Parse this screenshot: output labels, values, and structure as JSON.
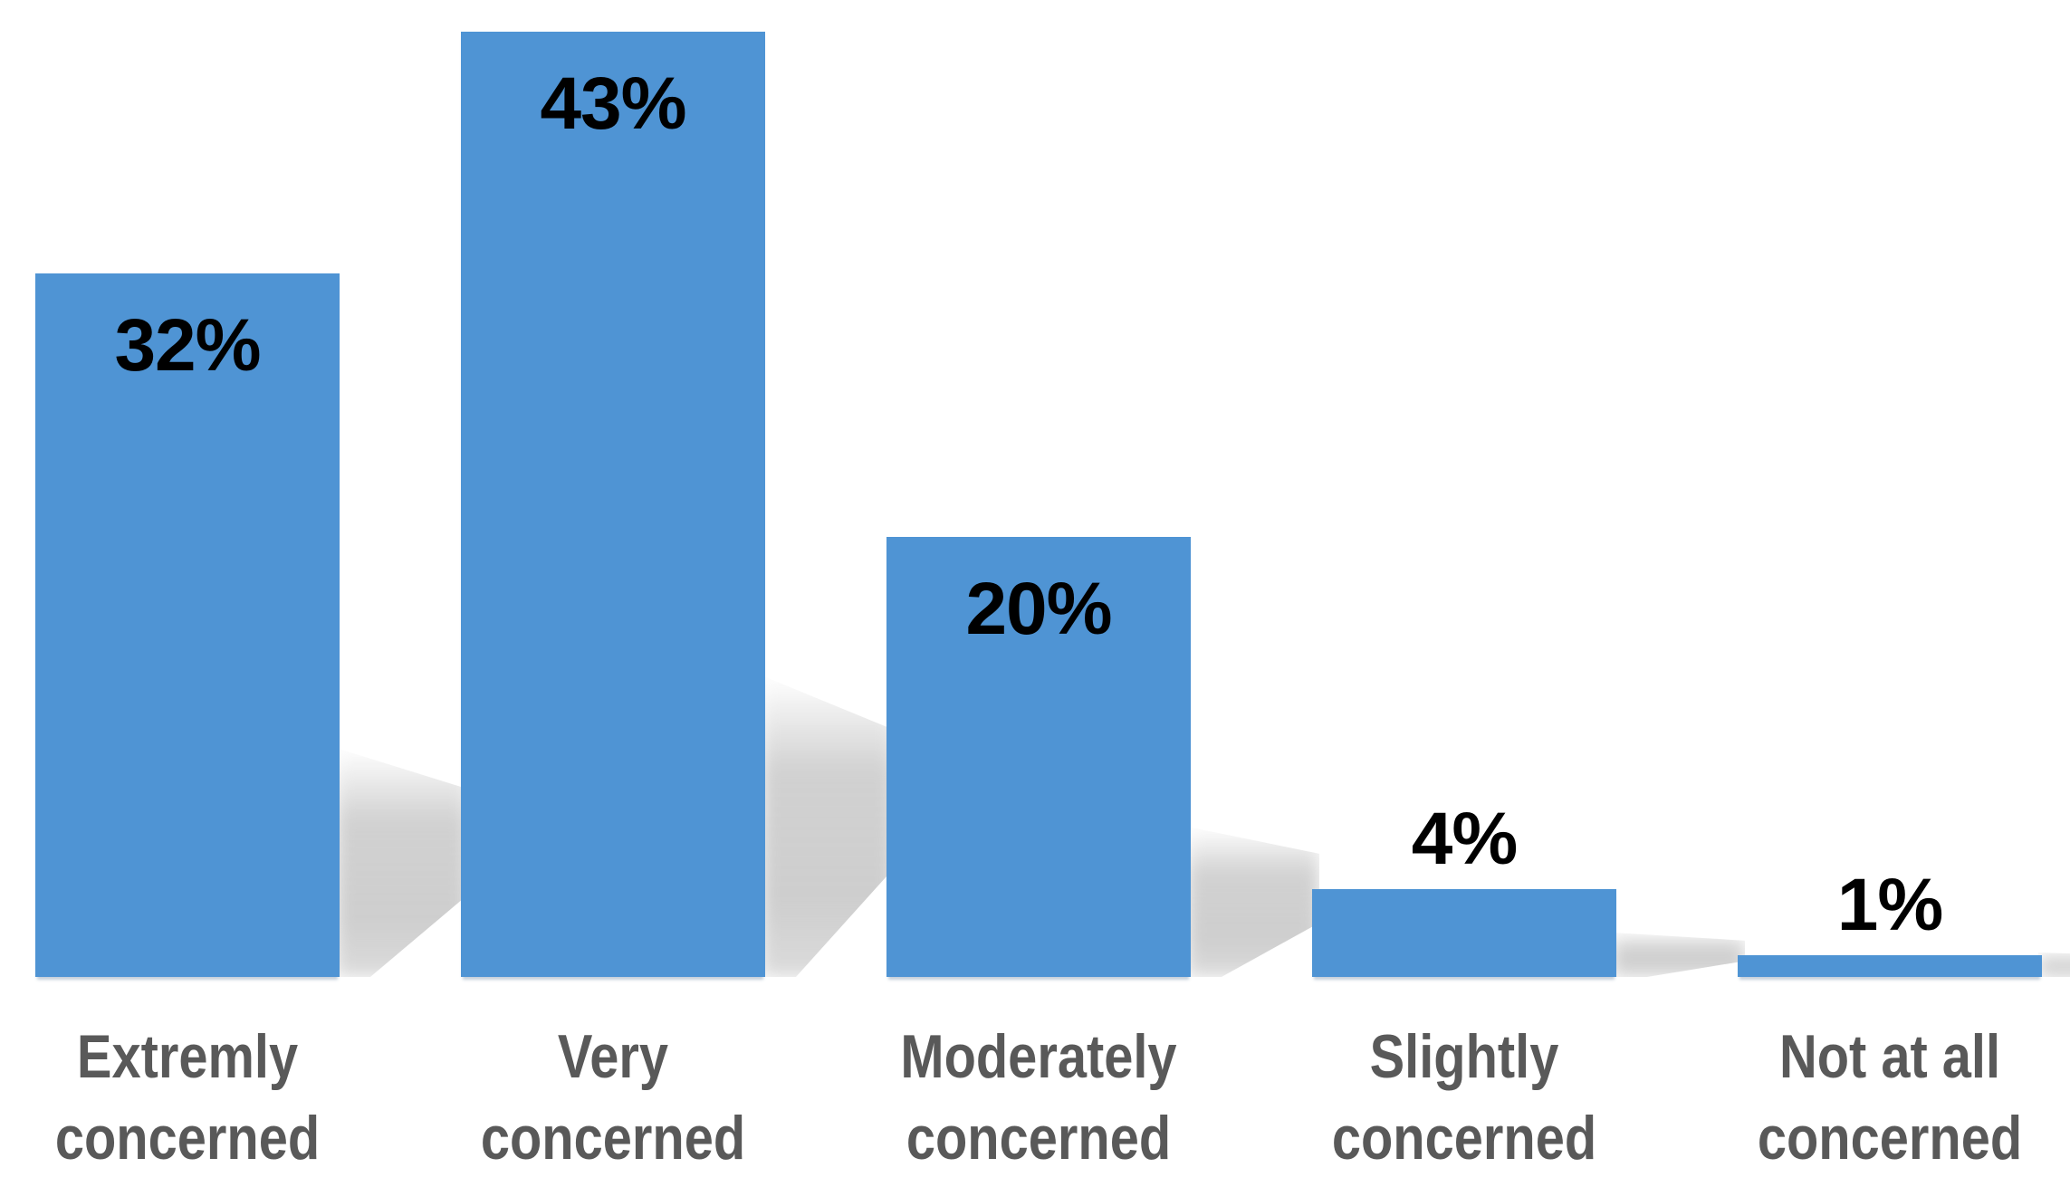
{
  "chart_data": {
    "type": "bar",
    "title": "",
    "xlabel": "",
    "ylabel": "",
    "categories": [
      "Extremly concerned",
      "Very concerned",
      "Moderately concerned",
      "Slightly concerned",
      "Not at all concerned"
    ],
    "values": [
      32,
      43,
      20,
      4,
      1
    ],
    "bars": [
      {
        "category_lines": [
          "Extremly",
          "concerned"
        ],
        "value": 32,
        "value_label": "32%",
        "value_label_position": "inside"
      },
      {
        "category_lines": [
          "Very",
          "concerned"
        ],
        "value": 43,
        "value_label": "43%",
        "value_label_position": "inside"
      },
      {
        "category_lines": [
          "Moderately",
          "concerned"
        ],
        "value": 20,
        "value_label": "20%",
        "value_label_position": "inside"
      },
      {
        "category_lines": [
          "Slightly",
          "concerned"
        ],
        "value": 4,
        "value_label": "4%",
        "value_label_position": "above"
      },
      {
        "category_lines": [
          "Not at all",
          "concerned"
        ],
        "value": 1,
        "value_label": "1%",
        "value_label_position": "above"
      }
    ],
    "ylim": [
      0,
      43
    ],
    "grid": false,
    "axes_visible": false,
    "legend": null,
    "colors": {
      "bar": "#4F94D4",
      "value_label": "#000000",
      "category_label": "#595959",
      "shadow": "#C9C9C9",
      "background": "#FFFFFF"
    }
  }
}
